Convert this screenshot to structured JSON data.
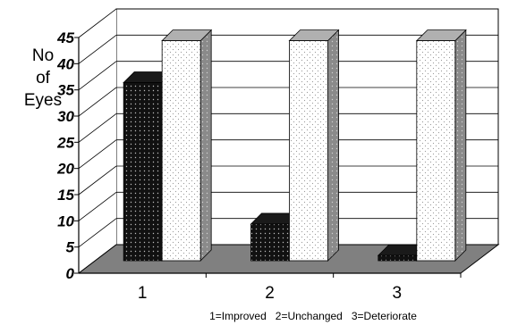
{
  "chart_data": {
    "type": "bar",
    "style": "3d-clustered-column",
    "categories": [
      "1",
      "2",
      "3"
    ],
    "series": [
      {
        "values": [
          34,
          7,
          1
        ],
        "color": "#111111",
        "pattern": "dark-dotted"
      },
      {
        "values": [
          42,
          42,
          42
        ],
        "color": "#ffffff",
        "pattern": "light-dotted"
      }
    ],
    "ylabel_lines": [
      "No",
      "of",
      "Eyes"
    ],
    "xnote": "1=Improved   2=Unchanged   3=Deteriorate",
    "yticks": [
      0,
      5,
      10,
      15,
      20,
      25,
      30,
      35,
      40,
      45
    ],
    "ylim": [
      0,
      45
    ],
    "grid": true,
    "floor_color": "#808080"
  }
}
